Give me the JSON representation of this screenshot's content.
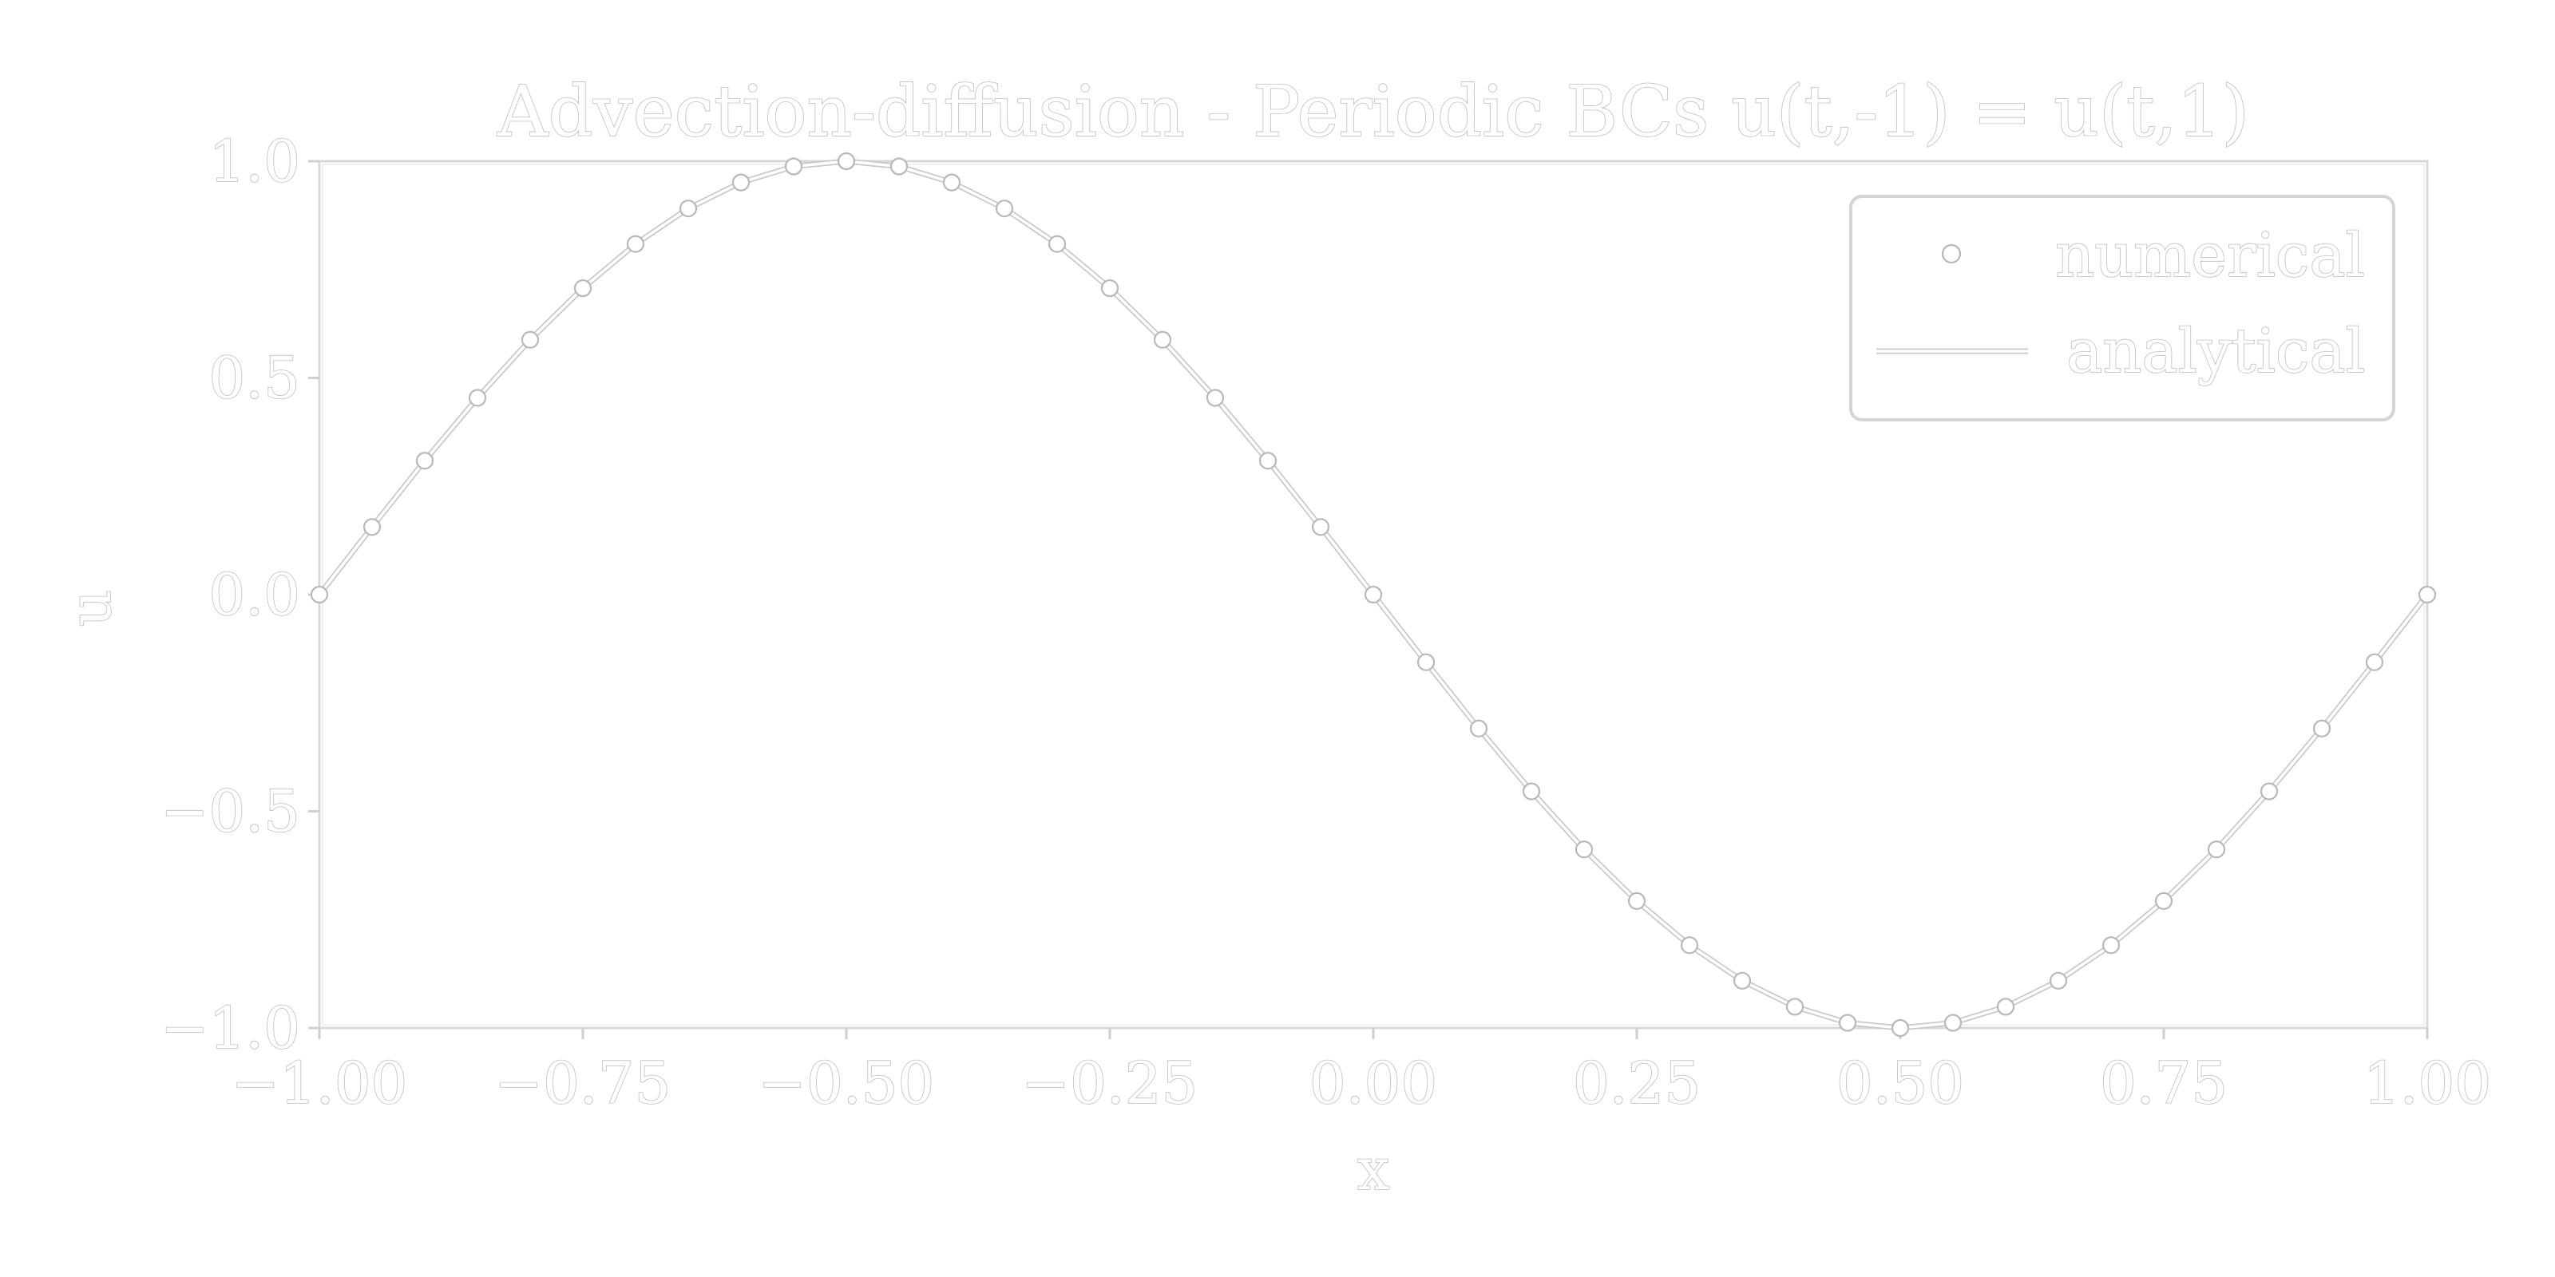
{
  "chart_data": {
    "type": "line",
    "title": "Advection-diffusion - Periodic BCs u(t,-1) = u(t,1)",
    "xlabel": "x",
    "ylabel": "u",
    "xlim": [
      -1.0,
      1.0
    ],
    "ylim": [
      -1.0,
      1.0
    ],
    "x_ticks": [
      "−1.00",
      "−0.75",
      "−0.50",
      "−0.25",
      "0.00",
      "0.25",
      "0.50",
      "0.75",
      "1.00"
    ],
    "y_ticks": [
      "1.0",
      "0.5",
      "0.0",
      "−0.5",
      "−1.0"
    ],
    "x_tick_values": [
      -1.0,
      -0.75,
      -0.5,
      -0.25,
      0.0,
      0.25,
      0.5,
      0.75,
      1.0
    ],
    "y_tick_values": [
      1.0,
      0.5,
      0.0,
      -0.5,
      -1.0
    ],
    "grid": false,
    "legend_position": "top-right",
    "series": [
      {
        "name": "numerical",
        "style": "markers",
        "x": [
          -1.0,
          -0.95,
          -0.9,
          -0.85,
          -0.8,
          -0.75,
          -0.7,
          -0.65,
          -0.6,
          -0.55,
          -0.5,
          -0.45,
          -0.4,
          -0.35,
          -0.3,
          -0.25,
          -0.2,
          -0.15,
          -0.1,
          -0.05,
          0.0,
          0.05,
          0.1,
          0.15,
          0.2,
          0.25,
          0.3,
          0.35,
          0.4,
          0.45,
          0.5,
          0.55,
          0.6,
          0.65,
          0.7,
          0.75,
          0.8,
          0.85,
          0.9,
          0.95,
          1.0
        ],
        "y": [
          0.0,
          0.156,
          0.309,
          0.454,
          0.588,
          0.707,
          0.809,
          0.891,
          0.951,
          0.988,
          1.0,
          0.988,
          0.951,
          0.891,
          0.809,
          0.707,
          0.588,
          0.454,
          0.309,
          0.156,
          0.0,
          -0.156,
          -0.309,
          -0.454,
          -0.588,
          -0.707,
          -0.809,
          -0.891,
          -0.951,
          -0.988,
          -1.0,
          -0.988,
          -0.951,
          -0.891,
          -0.809,
          -0.707,
          -0.588,
          -0.454,
          -0.309,
          -0.156,
          0.0
        ]
      },
      {
        "name": "analytical",
        "style": "line",
        "x": [
          -1.0,
          -0.95,
          -0.9,
          -0.85,
          -0.8,
          -0.75,
          -0.7,
          -0.65,
          -0.6,
          -0.55,
          -0.5,
          -0.45,
          -0.4,
          -0.35,
          -0.3,
          -0.25,
          -0.2,
          -0.15,
          -0.1,
          -0.05,
          0.0,
          0.05,
          0.1,
          0.15,
          0.2,
          0.25,
          0.3,
          0.35,
          0.4,
          0.45,
          0.5,
          0.55,
          0.6,
          0.65,
          0.7,
          0.75,
          0.8,
          0.85,
          0.9,
          0.95,
          1.0
        ],
        "y": [
          0.0,
          0.156,
          0.309,
          0.454,
          0.588,
          0.707,
          0.809,
          0.891,
          0.951,
          0.988,
          1.0,
          0.988,
          0.951,
          0.891,
          0.809,
          0.707,
          0.588,
          0.454,
          0.309,
          0.156,
          0.0,
          -0.156,
          -0.309,
          -0.454,
          -0.588,
          -0.707,
          -0.809,
          -0.891,
          -0.951,
          -0.988,
          -1.0,
          -0.988,
          -0.951,
          -0.891,
          -0.809,
          -0.707,
          -0.588,
          -0.454,
          -0.309,
          -0.156,
          0.0
        ]
      }
    ]
  }
}
